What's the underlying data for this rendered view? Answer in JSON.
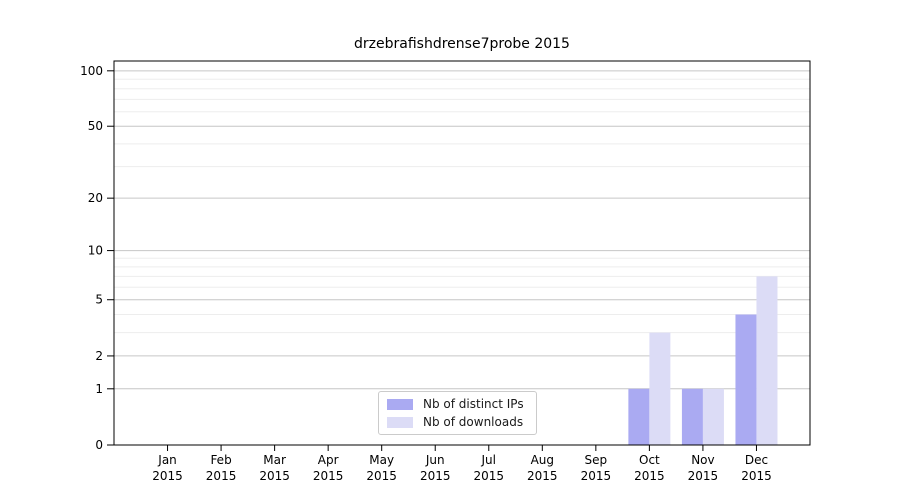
{
  "chart_data": {
    "type": "bar",
    "title": "drzebrafishdrense7probe 2015",
    "categories": [
      "Jan",
      "Feb",
      "Mar",
      "Apr",
      "May",
      "Jun",
      "Jul",
      "Aug",
      "Sep",
      "Oct",
      "Nov",
      "Dec"
    ],
    "category_year": "2015",
    "series": [
      {
        "name": "Nb of distinct IPs",
        "color": "#aaaaf2",
        "values": [
          0,
          0,
          0,
          0,
          0,
          0,
          0,
          0,
          0,
          1,
          1,
          4
        ]
      },
      {
        "name": "Nb of downloads",
        "color": "#dcdcf6",
        "values": [
          0,
          0,
          0,
          0,
          0,
          0,
          0,
          0,
          0,
          3,
          1,
          7
        ]
      }
    ],
    "xlabel": "",
    "ylabel": "",
    "yscale": "log1p",
    "ylim": [
      0,
      113
    ],
    "yticks": [
      0,
      1,
      2,
      5,
      10,
      20,
      50,
      100
    ],
    "ytick_labels": [
      "0",
      "1",
      "2",
      "5",
      "10",
      "20",
      "50",
      "100"
    ],
    "minor_gridlines": [
      3,
      4,
      6,
      7,
      8,
      9,
      30,
      40,
      60,
      70,
      80,
      90
    ],
    "grid": true,
    "legend_position": "lower center",
    "colors": {
      "axis_frame": "#000000",
      "major_grid": "#c6c6c6",
      "minor_grid": "#ededed",
      "tick_text": "#000000",
      "background": "#ffffff"
    }
  }
}
